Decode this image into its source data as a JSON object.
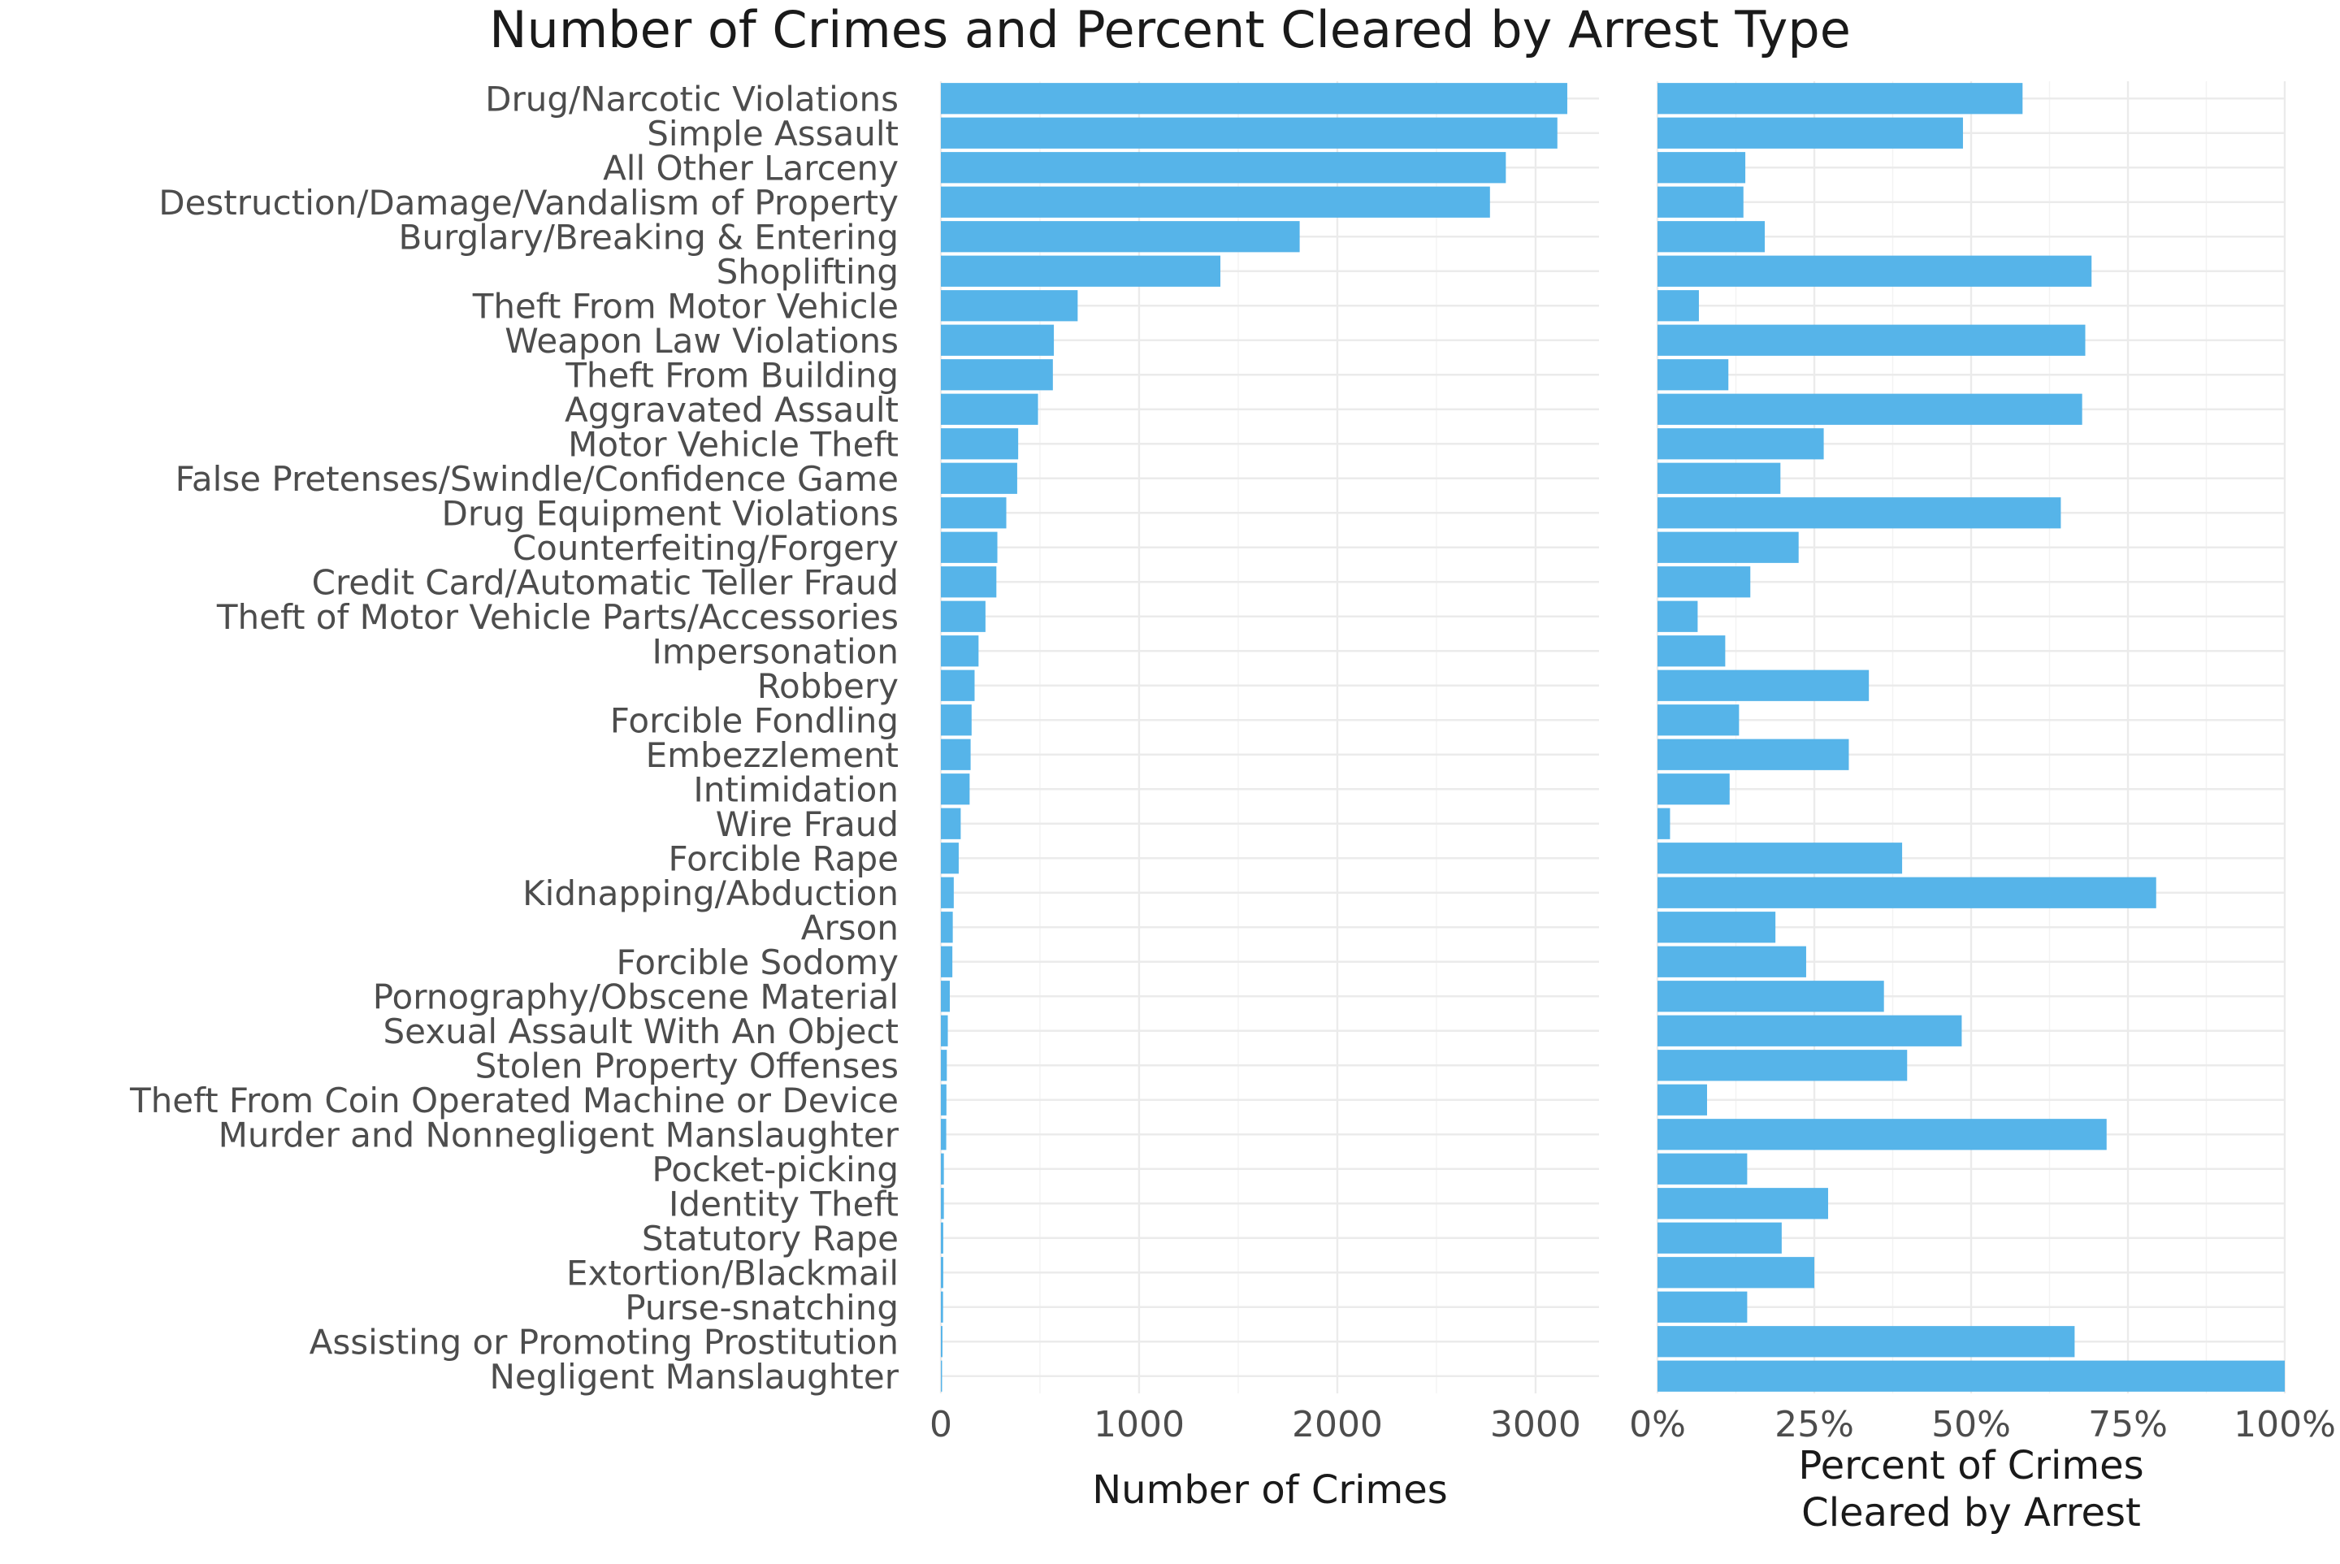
{
  "chart_data": {
    "type": "bar",
    "orientation": "horizontal",
    "title": "Number of Crimes and Percent Cleared by Arrest Type",
    "bar_color": "#56B4E9",
    "grid": true,
    "categories": [
      "Drug/Narcotic Violations",
      "Simple Assault",
      "All Other Larceny",
      "Destruction/Damage/Vandalism of Property",
      "Burglary/Breaking & Entering",
      "Shoplifting",
      "Theft From Motor Vehicle",
      "Weapon Law Violations",
      "Theft From Building",
      "Aggravated Assault",
      "Motor Vehicle Theft",
      "False Pretenses/Swindle/Confidence Game",
      "Drug Equipment Violations",
      "Counterfeiting/Forgery",
      "Credit Card/Automatic Teller Fraud",
      "Theft of Motor Vehicle Parts/Accessories",
      "Impersonation",
      "Robbery",
      "Forcible Fondling",
      "Embezzlement",
      "Intimidation",
      "Wire Fraud",
      "Forcible Rape",
      "Kidnapping/Abduction",
      "Arson",
      "Forcible Sodomy",
      "Pornography/Obscene Material",
      "Sexual Assault With An Object",
      "Stolen Property Offenses",
      "Theft From Coin Operated Machine or Device",
      "Murder and Nonnegligent Manslaughter",
      "Pocket-picking",
      "Identity Theft",
      "Statutory Rape",
      "Extortion/Blackmail",
      "Purse-snatching",
      "Assisting or Promoting Prostitution",
      "Negligent Manslaughter"
    ],
    "panels": [
      {
        "xlabel": "Number of Crimes",
        "xlim": [
          0,
          3320
        ],
        "ticks": [
          0,
          1000,
          2000,
          3000
        ],
        "tick_labels": [
          "0",
          "1000",
          "2000",
          "3000"
        ],
        "values": [
          3160,
          3110,
          2850,
          2770,
          1810,
          1410,
          690,
          570,
          565,
          490,
          390,
          385,
          330,
          285,
          280,
          225,
          190,
          170,
          155,
          150,
          145,
          100,
          90,
          65,
          60,
          58,
          45,
          35,
          30,
          28,
          27,
          15,
          15,
          12,
          12,
          11,
          8,
          6
        ]
      },
      {
        "xlabel": "Percent of Crimes\nCleared by Arrest",
        "xlabel_lines": [
          "Percent of Crimes",
          "Cleared by Arrest"
        ],
        "xlim": [
          0,
          1
        ],
        "ticks": [
          0,
          0.25,
          0.5,
          0.75,
          1
        ],
        "tick_labels": [
          "0%",
          "25%",
          "50%",
          "75%",
          "100%"
        ],
        "values": [
          0.582,
          0.487,
          0.14,
          0.137,
          0.171,
          0.692,
          0.066,
          0.682,
          0.113,
          0.677,
          0.265,
          0.196,
          0.643,
          0.225,
          0.148,
          0.064,
          0.108,
          0.337,
          0.13,
          0.305,
          0.115,
          0.02,
          0.39,
          0.795,
          0.188,
          0.237,
          0.361,
          0.485,
          0.398,
          0.079,
          0.716,
          0.143,
          0.272,
          0.198,
          0.25,
          0.143,
          0.665,
          1.0
        ]
      }
    ]
  }
}
